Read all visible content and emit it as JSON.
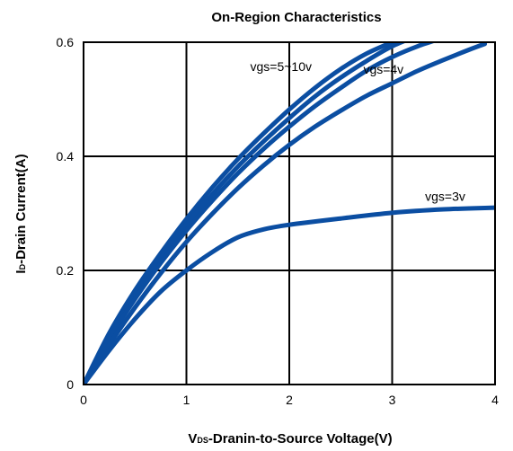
{
  "chart_data": {
    "type": "line",
    "title": "On-Region Characteristics",
    "xlabel": {
      "main": "V",
      "sub": "DS",
      "rest": "-Dranin-to-Source Voltage(V)"
    },
    "ylabel": {
      "main": "I",
      "sub": "D",
      "rest": "-Drain Current(A)"
    },
    "xlim": [
      0,
      4
    ],
    "ylim": [
      0,
      0.6
    ],
    "grid": true,
    "x_ticks": [
      {
        "value": 0,
        "label": "0"
      },
      {
        "value": 1,
        "label": "1"
      },
      {
        "value": 2,
        "label": "2"
      },
      {
        "value": 3,
        "label": "3"
      },
      {
        "value": 4,
        "label": "4"
      }
    ],
    "y_ticks": [
      {
        "value": 0,
        "label": "0"
      },
      {
        "value": 0.2,
        "label": "0.2"
      },
      {
        "value": 0.4,
        "label": "0.4"
      },
      {
        "value": 0.6,
        "label": "0.6"
      }
    ],
    "line_color": "#0b4ea2",
    "series": [
      {
        "x": [
          0,
          0.25,
          0.5,
          0.75,
          1,
          1.25,
          1.5,
          1.75,
          2,
          2.25,
          2.5,
          2.75,
          3.0,
          3.2
        ],
        "y": [
          0,
          0.09,
          0.165,
          0.23,
          0.29,
          0.345,
          0.395,
          0.44,
          0.482,
          0.52,
          0.553,
          0.58,
          0.6,
          0.615
        ]
      },
      {
        "x": [
          0,
          0.25,
          0.5,
          0.75,
          1,
          1.25,
          1.5,
          1.75,
          2,
          2.25,
          2.5,
          2.75,
          3.0,
          3.3
        ],
        "y": [
          0,
          0.085,
          0.158,
          0.222,
          0.28,
          0.333,
          0.382,
          0.426,
          0.467,
          0.505,
          0.538,
          0.567,
          0.593,
          0.615
        ]
      },
      {
        "x": [
          0,
          0.25,
          0.5,
          0.75,
          1,
          1.25,
          1.5,
          1.75,
          2,
          2.25,
          2.5,
          2.75,
          3.0,
          3.25,
          3.5,
          3.6
        ],
        "y": [
          0,
          0.08,
          0.15,
          0.213,
          0.27,
          0.322,
          0.37,
          0.413,
          0.452,
          0.488,
          0.52,
          0.55,
          0.574,
          0.593,
          0.608,
          0.615
        ]
      },
      {
        "x": [
          0,
          0.25,
          0.5,
          0.75,
          1,
          1.25,
          1.5,
          1.75,
          2,
          2.25,
          2.5,
          2.75,
          3.0,
          3.25,
          3.5,
          3.75,
          3.9
        ],
        "y": [
          0,
          0.07,
          0.135,
          0.195,
          0.25,
          0.299,
          0.344,
          0.384,
          0.42,
          0.452,
          0.48,
          0.506,
          0.528,
          0.55,
          0.569,
          0.587,
          0.597
        ]
      },
      {
        "x": [
          0,
          0.25,
          0.5,
          0.75,
          1,
          1.25,
          1.5,
          1.75,
          2,
          2.5,
          3,
          3.5,
          4
        ],
        "y": [
          0,
          0.06,
          0.115,
          0.163,
          0.2,
          0.232,
          0.258,
          0.272,
          0.28,
          0.291,
          0.301,
          0.307,
          0.31
        ]
      }
    ],
    "annotations": [
      {
        "text": "vgs=5~10v",
        "x": 1.62,
        "y": 0.55
      },
      {
        "text": "vgs=4v",
        "x": 2.72,
        "y": 0.545
      },
      {
        "text": "vgs=3v",
        "x": 3.32,
        "y": 0.322
      }
    ]
  }
}
